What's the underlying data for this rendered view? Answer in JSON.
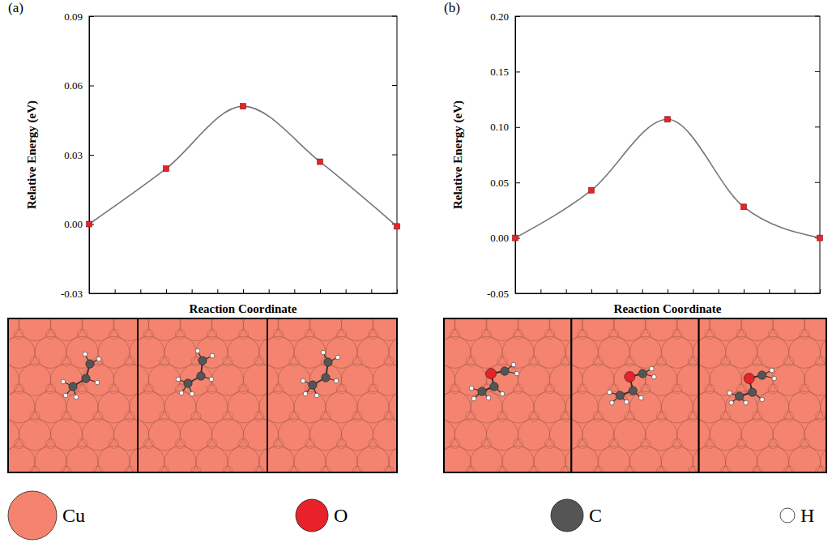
{
  "chart_data": [
    {
      "type": "line",
      "panel_label": "(a)",
      "xlabel": "Reaction Coordinate",
      "ylabel": "Relative Energy (eV)",
      "x": [
        0,
        3,
        6,
        9,
        12
      ],
      "values": [
        0.0,
        0.024,
        0.051,
        0.027,
        -0.001
      ],
      "color": "#777777",
      "marker": "square",
      "xlim": [
        0,
        12
      ],
      "xticks": [
        0,
        1,
        2,
        3,
        4,
        5,
        6,
        7,
        8,
        9,
        10,
        11,
        12
      ],
      "ylim": [
        -0.03,
        0.09
      ],
      "yticks": [
        -0.03,
        {
          "value": 0,
          "label": "0.00"
        },
        0.03,
        0.06,
        0.09
      ],
      "tick_labels": "y"
    },
    {
      "type": "line",
      "panel_label": "(b)",
      "xlabel": "Reaction Coordinate",
      "ylabel": "Relative Energy (eV)",
      "x": [
        0,
        3,
        6,
        9,
        12
      ],
      "values": [
        0.0,
        0.043,
        0.107,
        0.028,
        0.0
      ],
      "color": "#777777",
      "marker": "square",
      "xlim": [
        0,
        12
      ],
      "xticks": [
        0,
        1,
        2,
        3,
        4,
        5,
        6,
        7,
        8,
        9,
        10,
        11,
        12
      ],
      "ylim": [
        -0.05,
        0.2
      ],
      "yticks": [
        -0.05,
        {
          "value": 0,
          "label": "0.00"
        },
        0.05,
        {
          "value": 0.1,
          "label": "0.10"
        },
        0.15,
        {
          "value": 0.2,
          "label": "0.20"
        }
      ],
      "tick_labels": "y"
    }
  ],
  "species": [
    {
      "label": "Cu",
      "color": "#f4846f"
    },
    {
      "label": "O",
      "color": "#e8212b"
    },
    {
      "label": "C",
      "color": "#555555"
    },
    {
      "label": "H",
      "color": "#ffffff"
    }
  ]
}
